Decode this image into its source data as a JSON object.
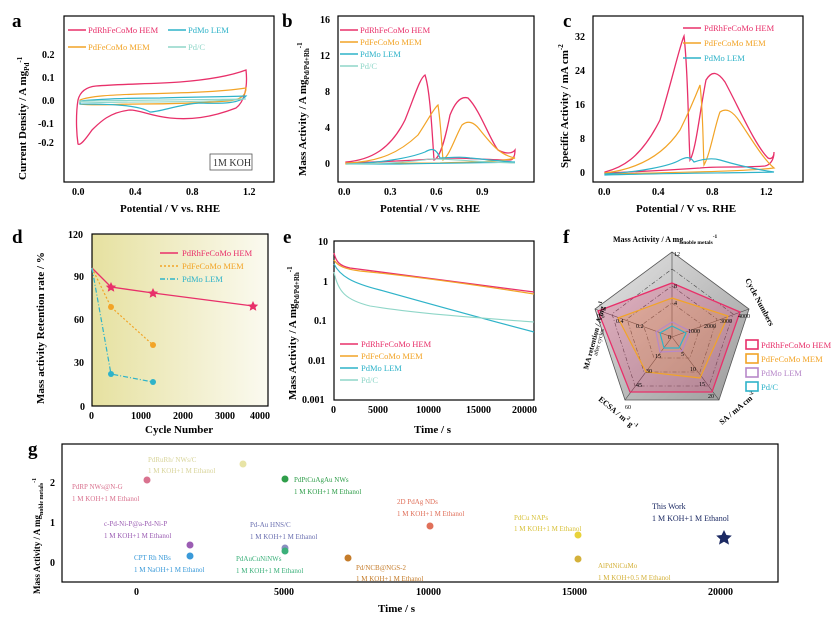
{
  "colors": {
    "hem": "#e8306a",
    "mem": "#f2a427",
    "lem": "#2fb3c9",
    "pdc": "#8fd6c8",
    "pink_band": "#f4c6d6",
    "radar_purple": "#b788c9",
    "star": "#1c2a63"
  },
  "panel_a": {
    "letter": "a",
    "ylabel": "Current Density / A mg",
    "ylabel_sub": "Pd",
    "ylabel_sup": "-1",
    "xlabel": "Potential / V vs. RHE",
    "xticks": [
      "0.0",
      "0.4",
      "0.8",
      "1.2"
    ],
    "yticks": [
      "-0.2",
      "-0.1",
      "0.0",
      "0.1",
      "0.2"
    ],
    "legend": [
      "PdRhFeCoMo HEM",
      "PdFeCoMo MEM",
      "PdMo LEM",
      "Pd/C"
    ],
    "annotation": "1M KOH"
  },
  "panel_b": {
    "letter": "b",
    "ylabel": "Mass Activity / A mg",
    "ylabel_sub": "Pd/Pd+Rh",
    "ylabel_sup": "-1",
    "xlabel": "Potential / V vs. RHE",
    "xticks": [
      "0.0",
      "0.3",
      "0.6",
      "0.9"
    ],
    "yticks": [
      "0",
      "4",
      "8",
      "12",
      "16"
    ],
    "legend": [
      "PdRhFeCoMo HEM",
      "PdFeCoMo MEM",
      "PdMo LEM",
      "Pd/C"
    ]
  },
  "panel_c": {
    "letter": "c",
    "ylabel": "Specific Activity / mA cm",
    "ylabel_sup": "-2",
    "xlabel": "Potential / V vs. RHE",
    "xticks": [
      "0.0",
      "0.4",
      "0.8",
      "1.2"
    ],
    "yticks": [
      "0",
      "8",
      "16",
      "24",
      "32"
    ],
    "legend": [
      "PdRhFeCoMo HEM",
      "PdFeCoMo MEM",
      "PdMo LEM"
    ]
  },
  "panel_d": {
    "letter": "d",
    "ylabel": "Mass activity Retention rate / %",
    "xlabel": "Cycle Number",
    "xticks": [
      "0",
      "1000",
      "2000",
      "3000",
      "4000"
    ],
    "yticks": [
      "0",
      "30",
      "60",
      "90",
      "120"
    ],
    "legend": [
      "PdRhFeCoMo HEM",
      "PdFeCoMo MEM",
      "PdMo LEM"
    ]
  },
  "panel_e": {
    "letter": "e",
    "ylabel": "Mass Activity / A mg",
    "ylabel_sub": "Pd/Pd+Rh",
    "ylabel_sup": "-1",
    "xlabel": "Time / s",
    "xticks": [
      "0",
      "5000",
      "10000",
      "15000",
      "20000"
    ],
    "yticks": [
      "10",
      "1",
      "0.1",
      "0.01",
      "0.001"
    ],
    "legend": [
      "PdRhFeCoMo HEM",
      "PdFeCoMo MEM",
      "PdMo LEM",
      "Pd/C"
    ]
  },
  "panel_f": {
    "letter": "f",
    "axis_top": "Mass Activity / A mg",
    "axis_top_sub": "noble metals",
    "axis_top_sup": "-1",
    "axis_right": "Cycle Numbers",
    "axis_br": "SA / mA cm",
    "axis_br_sup": "-2",
    "axis_bl": "ECSA / m",
    "axis_bl_sup": "2",
    "axis_bl_tail": " g",
    "axis_bl_sup2": "-1",
    "axis_left": "MA retention / A mg",
    "axis_left_sup": "-1",
    "axis_left_line2": "after cycles",
    "tick_top": [
      "0",
      "4",
      "8",
      "12"
    ],
    "tick_right": [
      "1000",
      "2000",
      "3000",
      "4000"
    ],
    "tick_br": [
      "5",
      "10",
      "15",
      "20"
    ],
    "tick_bl": [
      "15",
      "30",
      "45",
      "60"
    ],
    "tick_left": [
      "0.2",
      "0.4",
      "0.6"
    ],
    "legend": [
      "PdRhFeCoMo HEM",
      "PdFeCoMo MEM",
      "PdMo LEM",
      "Pd/C"
    ]
  },
  "panel_g": {
    "letter": "g",
    "ylabel": "Mass Activity / A mg",
    "ylabel_sub": "noble metals",
    "ylabel_sup": "-1",
    "xlabel": "Time / s",
    "xticks": [
      "0",
      "5000",
      "10000",
      "15000",
      "20000"
    ],
    "yticks": [
      "0",
      "1",
      "2"
    ],
    "points": [
      {
        "label": "PdRP NWs@N-G",
        "cond": "1 M KOH+1 M Ethanol",
        "color": "#d9728f"
      },
      {
        "label": "PdRuRh/ NWs/C",
        "cond": "1 M KOH+1 M Ethanol",
        "color": "#e8e4a6"
      },
      {
        "label": "PdPtCuAgAu NWs",
        "cond": "1 M KOH+1 M Ethanol",
        "color": "#2f9e4a"
      },
      {
        "label": "c-Pd-Ni-P@a-Pd-Ni-P",
        "cond": "1 M KOH+1 M Ethanol",
        "color": "#9b5db3"
      },
      {
        "label": "Pd-Au HNS/C",
        "cond": "1 M KOH+1 M Ethanol",
        "color": "#8a8fc0"
      },
      {
        "label": "CPT Rh NBs",
        "cond": "1 M NaOH+1 M Ethanol",
        "color": "#3a9ad9"
      },
      {
        "label": "PdAuCuNiNWs",
        "cond": "1 M KOH+1 M Ethanol",
        "color": "#3bb07a"
      },
      {
        "label": "2D PdAg NDs",
        "cond": "1 M KOH+1 M Ethanol",
        "color": "#e0705a"
      },
      {
        "label": "Pd/NCB@NGS-2",
        "cond": "1 M KOH+1 M Ethanol",
        "color": "#c57c2a"
      },
      {
        "label": "PdCu NAPs",
        "cond": "1 M KOH+1 M Ethanol",
        "color": "#e8d23a"
      },
      {
        "label": "AlPdNiCuMo",
        "cond": "1 M KOH+0.5 M Ethanol",
        "color": "#d4b13a"
      },
      {
        "label": "This Work",
        "cond": "1 M KOH+1 M Ethanol",
        "color": "#1c2a63"
      }
    ]
  }
}
